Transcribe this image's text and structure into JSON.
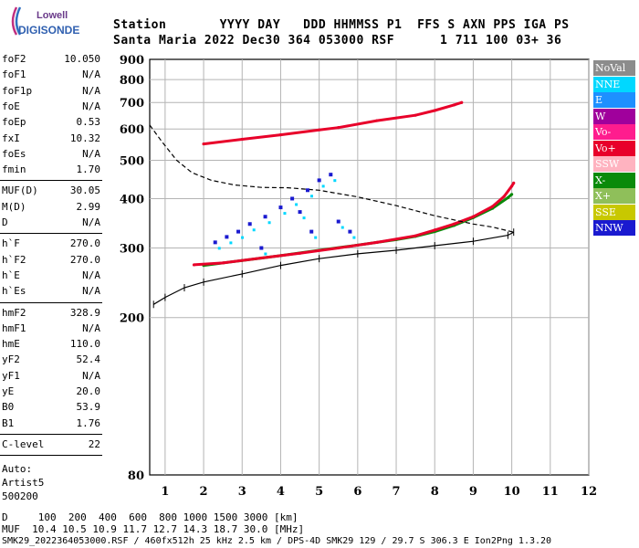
{
  "logo": {
    "line1": "Lowell",
    "line2": "DIGISONDE"
  },
  "header": {
    "labels": "Station       YYYY DAY   DDD HHMMSS P1  FFS S AXN PPS IGA PS",
    "values": "Santa Maria 2022 Dec30 364 053000 RSF      1 711 100 03+ 36"
  },
  "params": {
    "group1": [
      {
        "name": "foF2",
        "value": "10.050"
      },
      {
        "name": "foF1",
        "value": "N/A"
      },
      {
        "name": "foF1p",
        "value": "N/A"
      },
      {
        "name": "foE",
        "value": "N/A"
      },
      {
        "name": "foEp",
        "value": "0.53"
      },
      {
        "name": "fxI",
        "value": "10.32"
      },
      {
        "name": "foEs",
        "value": "N/A"
      },
      {
        "name": "fmin",
        "value": "1.70"
      }
    ],
    "group2": [
      {
        "name": "MUF(D)",
        "value": "30.05"
      },
      {
        "name": "M(D)",
        "value": "2.99"
      },
      {
        "name": "D",
        "value": "N/A"
      }
    ],
    "group3": [
      {
        "name": "h`F",
        "value": "270.0"
      },
      {
        "name": "h`F2",
        "value": "270.0"
      },
      {
        "name": "h`E",
        "value": "N/A"
      },
      {
        "name": "h`Es",
        "value": "N/A"
      }
    ],
    "group4": [
      {
        "name": "hmF2",
        "value": "328.9"
      },
      {
        "name": "hmF1",
        "value": "N/A"
      },
      {
        "name": "hmE",
        "value": "110.0"
      },
      {
        "name": "yF2",
        "value": "52.4"
      },
      {
        "name": "yF1",
        "value": "N/A"
      },
      {
        "name": "yE",
        "value": "20.0"
      },
      {
        "name": "B0",
        "value": "53.9"
      },
      {
        "name": "B1",
        "value": "1.76"
      }
    ],
    "group5": [
      {
        "name": "C-level",
        "value": "22"
      }
    ],
    "auto": [
      "Auto:",
      "Artist5",
      "500200"
    ]
  },
  "legend": [
    {
      "label": "NoVal",
      "color": "#8c8c8c"
    },
    {
      "label": "NNE",
      "color": "#00d8ff"
    },
    {
      "label": "E",
      "color": "#1e90ff"
    },
    {
      "label": "W",
      "color": "#a0009c"
    },
    {
      "label": "Vo-",
      "color": "#ff1c8e"
    },
    {
      "label": "Vo+",
      "color": "#e8002a"
    },
    {
      "label": "SSW",
      "color": "#ffb3c0"
    },
    {
      "label": "X-",
      "color": "#0a8a0a"
    },
    {
      "label": "X+",
      "color": "#8fbf5a"
    },
    {
      "label": "SSE",
      "color": "#c8c800"
    },
    {
      "label": "NNW",
      "color": "#1a1ad0"
    }
  ],
  "footer": {
    "d_row": "D     100  200  400  600  800 1000 1500 3000 [km]",
    "muf_row": "MUF  10.4 10.5 10.9 11.7 12.7 14.3 18.7 30.0 [MHz]",
    "info": "SMK29_2022364053000.RSF / 460fx512h 25 kHz 2.5 km / DPS-4D SMK29 129 / 29.7 S 306.3 E Ion2Png 1.3.20"
  },
  "chart_data": {
    "type": "scatter",
    "xlabel": "",
    "ylabel": "",
    "xlim": [
      0.6,
      12
    ],
    "xticks": [
      1,
      2,
      3,
      4,
      5,
      6,
      7,
      8,
      9,
      10,
      11,
      12
    ],
    "ylim": [
      80,
      900
    ],
    "ylog": true,
    "yticks": [
      80,
      200,
      300,
      400,
      500,
      600,
      700,
      800,
      900
    ],
    "grid": true,
    "series": [
      {
        "name": "X-",
        "color": "#0a8a0a",
        "points": [
          [
            2.0,
            271
          ],
          [
            3.0,
            279
          ],
          [
            4.0,
            287
          ],
          [
            5.0,
            296
          ],
          [
            6.0,
            305
          ],
          [
            7.0,
            315
          ],
          [
            7.5,
            321
          ],
          [
            8.0,
            330
          ],
          [
            8.5,
            342
          ],
          [
            9.0,
            358
          ],
          [
            9.5,
            378
          ],
          [
            9.9,
            402
          ],
          [
            10.0,
            410
          ]
        ]
      },
      {
        "name": "Vo+",
        "color": "#e8002a",
        "points": [
          [
            1.75,
            272
          ],
          [
            2.5,
            275
          ],
          [
            3.5,
            283
          ],
          [
            4.5,
            291
          ],
          [
            5.5,
            300
          ],
          [
            6.5,
            310
          ],
          [
            7.5,
            322
          ],
          [
            8.0,
            333
          ],
          [
            8.5,
            345
          ],
          [
            9.0,
            360
          ],
          [
            9.5,
            382
          ],
          [
            9.8,
            405
          ],
          [
            10.0,
            430
          ],
          [
            10.05,
            438
          ]
        ]
      },
      {
        "name": "Vo+ (multiple)",
        "color": "#e8002a",
        "points": [
          [
            2.0,
            550
          ],
          [
            3.0,
            565
          ],
          [
            4.0,
            580
          ],
          [
            5.0,
            597
          ],
          [
            5.5,
            605
          ],
          [
            6.5,
            630
          ],
          [
            7.5,
            650
          ],
          [
            8.0,
            668
          ],
          [
            8.5,
            690
          ],
          [
            8.7,
            700
          ]
        ]
      },
      {
        "name": "Profile",
        "color": "#000000",
        "points": [
          [
            0.6,
            614
          ],
          [
            0.9,
            560
          ],
          [
            1.3,
            500
          ],
          [
            1.7,
            465
          ],
          [
            2.2,
            445
          ],
          [
            2.8,
            433
          ],
          [
            3.5,
            427
          ],
          [
            4.2,
            426
          ],
          [
            5.0,
            420
          ],
          [
            6.0,
            404
          ],
          [
            7.0,
            384
          ],
          [
            8.0,
            362
          ],
          [
            9.0,
            345
          ],
          [
            9.5,
            339
          ],
          [
            10.05,
            329
          ],
          [
            9.9,
            323
          ],
          [
            9.0,
            312
          ],
          [
            8.0,
            304
          ],
          [
            7.0,
            296
          ],
          [
            6.0,
            290
          ],
          [
            5.0,
            282
          ],
          [
            4.0,
            271
          ],
          [
            3.0,
            258
          ],
          [
            2.0,
            246
          ],
          [
            1.5,
            238
          ],
          [
            1.0,
            225
          ],
          [
            0.7,
            216
          ]
        ]
      },
      {
        "name": "Scatter cluster",
        "color": "#1a1ad0",
        "points": [
          [
            2.3,
            310
          ],
          [
            2.6,
            320
          ],
          [
            2.9,
            330
          ],
          [
            3.2,
            345
          ],
          [
            3.6,
            360
          ],
          [
            4.0,
            380
          ],
          [
            4.3,
            400
          ],
          [
            4.7,
            420
          ],
          [
            5.0,
            445
          ],
          [
            5.3,
            460
          ],
          [
            4.8,
            330
          ],
          [
            5.5,
            350
          ],
          [
            3.5,
            300
          ],
          [
            4.5,
            370
          ],
          [
            5.8,
            330
          ]
        ]
      }
    ]
  }
}
